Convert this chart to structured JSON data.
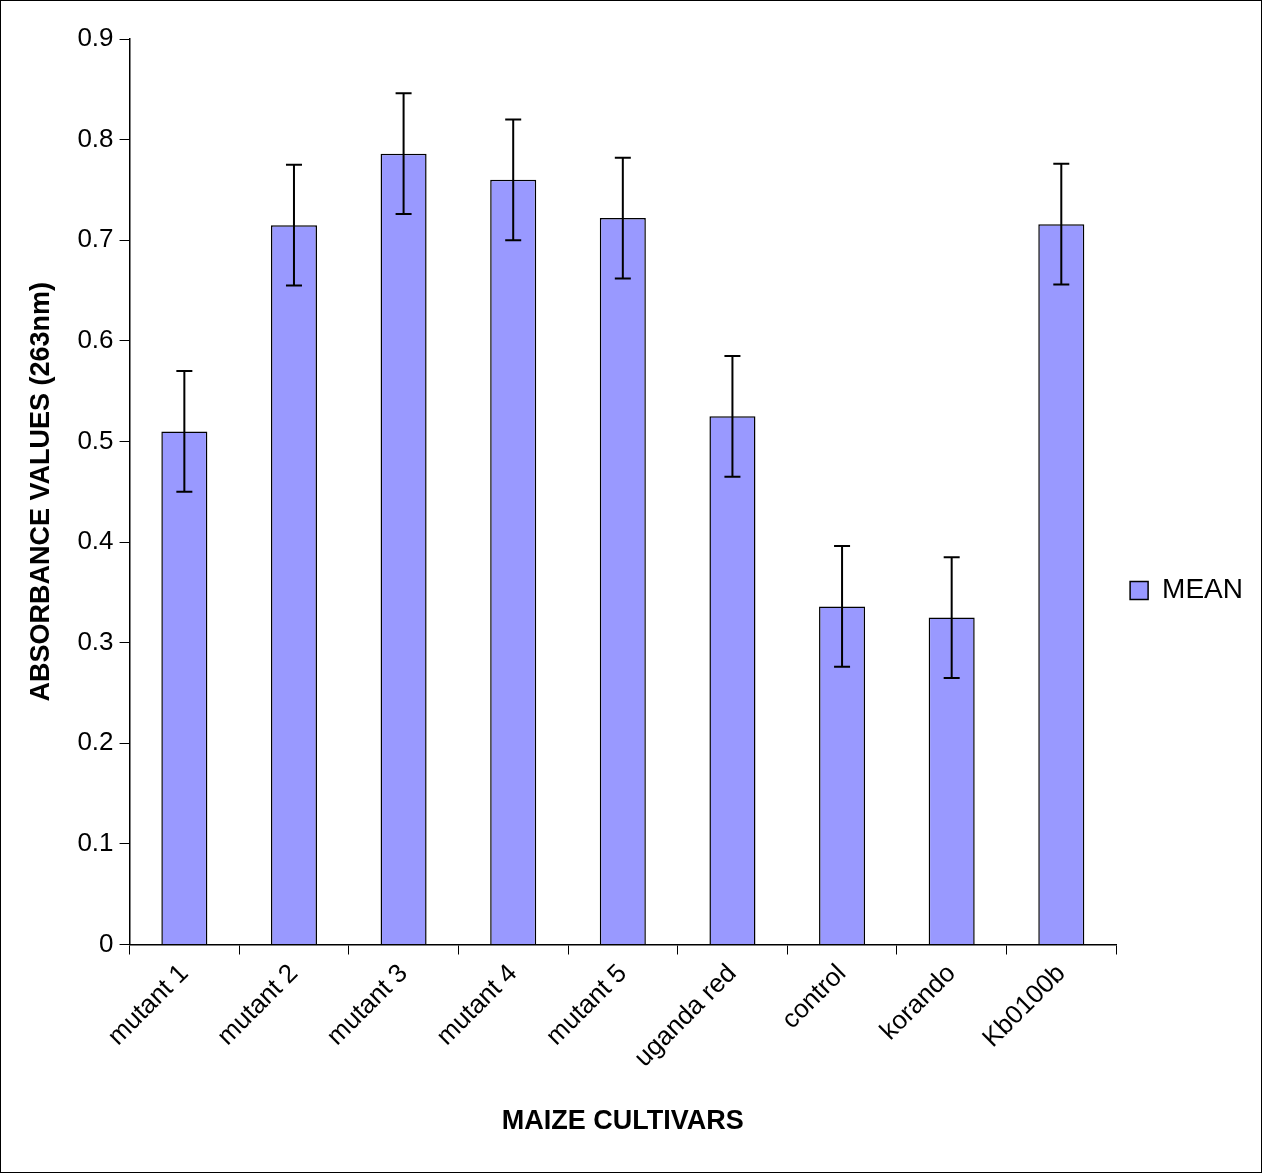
{
  "chart_data": {
    "type": "bar",
    "xlabel": "MAIZE CULTIVARS",
    "ylabel": "ABSORBANCE VALUES (263nm)",
    "categories": [
      "mutant 1",
      "mutant 2",
      "mutant 3",
      "mutant 4",
      "mutant 5",
      "uganda red",
      "control",
      "korando",
      "Kb0100b"
    ],
    "series": [
      {
        "name": "MEAN",
        "color": "#9999ff",
        "values": [
          0.51,
          0.715,
          0.786,
          0.76,
          0.722,
          0.525,
          0.336,
          0.325,
          0.716
        ],
        "errors": [
          0.06,
          0.06,
          0.06,
          0.06,
          0.06,
          0.06,
          0.06,
          0.06,
          0.06
        ]
      }
    ],
    "ylim": [
      0,
      0.9
    ],
    "yticks": [
      0,
      0.1,
      0.2,
      0.3,
      0.4,
      0.5,
      0.6,
      0.7,
      0.8,
      0.9
    ],
    "grid": false,
    "legend": "right"
  }
}
